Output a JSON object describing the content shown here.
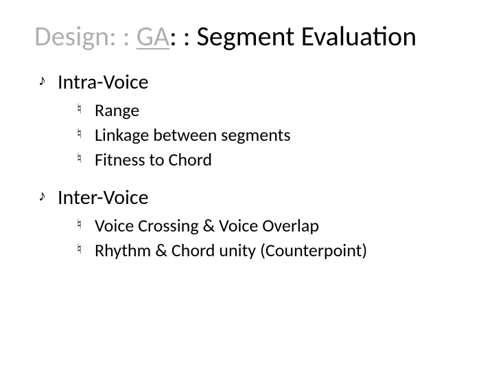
{
  "colors": {
    "background": "#ffffff",
    "text": "#000000",
    "title_gray": "#b0b0b0"
  },
  "typography": {
    "family": "Calibri",
    "title_fontsize_pt": 30,
    "h1_fontsize_pt": 22,
    "h2_fontsize_pt": 19
  },
  "bullets": {
    "level1_glyph": "eighth-note",
    "level2_glyph": "natural-sign"
  },
  "title": {
    "part1": "Design: : ",
    "part2_underlined": "GA",
    "part3": ": : Segment Evaluation"
  },
  "sections": [
    {
      "heading": "Intra-Voice",
      "items": [
        "Range",
        "Linkage between segments",
        "Fitness to Chord"
      ]
    },
    {
      "heading": "Inter-Voice",
      "items": [
        "Voice Crossing & Voice Overlap",
        "Rhythm & Chord unity (Counterpoint)"
      ]
    }
  ]
}
